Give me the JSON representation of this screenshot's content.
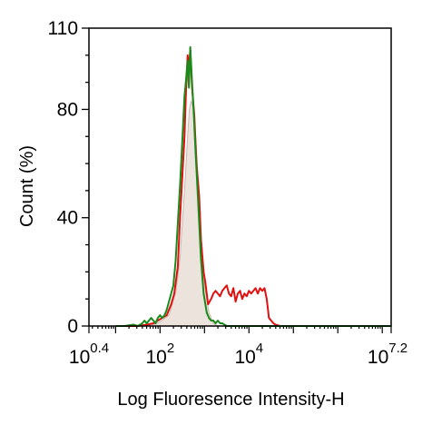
{
  "chart_data": {
    "type": "area",
    "title": "",
    "xlabel": "Log Fluoresence Intensity-H",
    "ylabel": "Count  (%)",
    "x_scale": "log10",
    "xlim": [
      0.4,
      7.2
    ],
    "ylim": [
      0,
      110
    ],
    "grid": false,
    "legend": "none",
    "x_ticks": [
      {
        "value": 0.4,
        "base": "10",
        "exp": "0.4"
      },
      {
        "value": 2,
        "base": "10",
        "exp": "2"
      },
      {
        "value": 4,
        "base": "10",
        "exp": "4"
      },
      {
        "value": 7.2,
        "base": "10",
        "exp": "7.2"
      }
    ],
    "y_ticks": [
      {
        "value": 0,
        "label": "0"
      },
      {
        "value": 40,
        "label": "40"
      },
      {
        "value": 80,
        "label": "80"
      },
      {
        "value": 110,
        "label": "110"
      }
    ],
    "series": [
      {
        "color": "#c9b8b0",
        "fill": "#ede3dd",
        "points": [
          [
            1.6,
            0
          ],
          [
            1.85,
            0.5
          ],
          [
            2.0,
            1.5
          ],
          [
            2.2,
            4
          ],
          [
            2.35,
            12
          ],
          [
            2.45,
            25
          ],
          [
            2.55,
            50
          ],
          [
            2.62,
            70
          ],
          [
            2.66,
            80
          ],
          [
            2.7,
            83
          ],
          [
            2.76,
            80
          ],
          [
            2.82,
            65
          ],
          [
            2.9,
            40
          ],
          [
            3.0,
            15
          ],
          [
            3.1,
            5
          ],
          [
            3.2,
            1
          ],
          [
            3.3,
            0
          ]
        ]
      },
      {
        "color": "#e01010",
        "points": [
          [
            1.0,
            0
          ],
          [
            1.5,
            0
          ],
          [
            1.7,
            0.5
          ],
          [
            1.85,
            1
          ],
          [
            1.95,
            2
          ],
          [
            2.05,
            3
          ],
          [
            2.15,
            4
          ],
          [
            2.25,
            8
          ],
          [
            2.32,
            12
          ],
          [
            2.4,
            22
          ],
          [
            2.45,
            40
          ],
          [
            2.5,
            55
          ],
          [
            2.55,
            70
          ],
          [
            2.58,
            85
          ],
          [
            2.62,
            100
          ],
          [
            2.65,
            95
          ],
          [
            2.68,
            102
          ],
          [
            2.72,
            88
          ],
          [
            2.77,
            78
          ],
          [
            2.82,
            60
          ],
          [
            2.88,
            48
          ],
          [
            2.92,
            32
          ],
          [
            2.98,
            20
          ],
          [
            3.02,
            16
          ],
          [
            3.08,
            8
          ],
          [
            3.15,
            10
          ],
          [
            3.2,
            12
          ],
          [
            3.25,
            13
          ],
          [
            3.3,
            12
          ],
          [
            3.35,
            11
          ],
          [
            3.4,
            13
          ],
          [
            3.45,
            14
          ],
          [
            3.5,
            15
          ],
          [
            3.55,
            12
          ],
          [
            3.6,
            11
          ],
          [
            3.65,
            14
          ],
          [
            3.7,
            9
          ],
          [
            3.75,
            12
          ],
          [
            3.8,
            13
          ],
          [
            3.85,
            10
          ],
          [
            3.9,
            12
          ],
          [
            3.95,
            11
          ],
          [
            4.0,
            13
          ],
          [
            4.05,
            12
          ],
          [
            4.1,
            13
          ],
          [
            4.15,
            14
          ],
          [
            4.2,
            12
          ],
          [
            4.25,
            14
          ],
          [
            4.3,
            13
          ],
          [
            4.35,
            14
          ],
          [
            4.4,
            10
          ],
          [
            4.45,
            3
          ],
          [
            4.5,
            2
          ],
          [
            4.55,
            1
          ],
          [
            4.6,
            0.5
          ],
          [
            4.7,
            0
          ],
          [
            5.8,
            0
          ],
          [
            7.2,
            0
          ]
        ]
      },
      {
        "color": "#1a8a1a",
        "points": [
          [
            1.0,
            0
          ],
          [
            1.2,
            0
          ],
          [
            1.4,
            0.5
          ],
          [
            1.5,
            0
          ],
          [
            1.6,
            1
          ],
          [
            1.65,
            2
          ],
          [
            1.7,
            1
          ],
          [
            1.75,
            2
          ],
          [
            1.8,
            3
          ],
          [
            1.85,
            2
          ],
          [
            1.9,
            1
          ],
          [
            1.95,
            3
          ],
          [
            2.0,
            4
          ],
          [
            2.05,
            3
          ],
          [
            2.1,
            4
          ],
          [
            2.15,
            6
          ],
          [
            2.2,
            9
          ],
          [
            2.25,
            12
          ],
          [
            2.3,
            15
          ],
          [
            2.35,
            24
          ],
          [
            2.4,
            38
          ],
          [
            2.45,
            52
          ],
          [
            2.5,
            68
          ],
          [
            2.55,
            85
          ],
          [
            2.58,
            90
          ],
          [
            2.62,
            98
          ],
          [
            2.65,
            88
          ],
          [
            2.68,
            103
          ],
          [
            2.72,
            90
          ],
          [
            2.76,
            78
          ],
          [
            2.8,
            64
          ],
          [
            2.86,
            45
          ],
          [
            2.92,
            25
          ],
          [
            2.98,
            12
          ],
          [
            3.05,
            5
          ],
          [
            3.1,
            3
          ],
          [
            3.15,
            2
          ],
          [
            3.2,
            2
          ],
          [
            3.25,
            1
          ],
          [
            3.3,
            2
          ],
          [
            3.35,
            1
          ],
          [
            3.4,
            1
          ],
          [
            3.5,
            0
          ],
          [
            3.6,
            0
          ],
          [
            5.0,
            0
          ],
          [
            7.2,
            0
          ]
        ]
      }
    ]
  }
}
